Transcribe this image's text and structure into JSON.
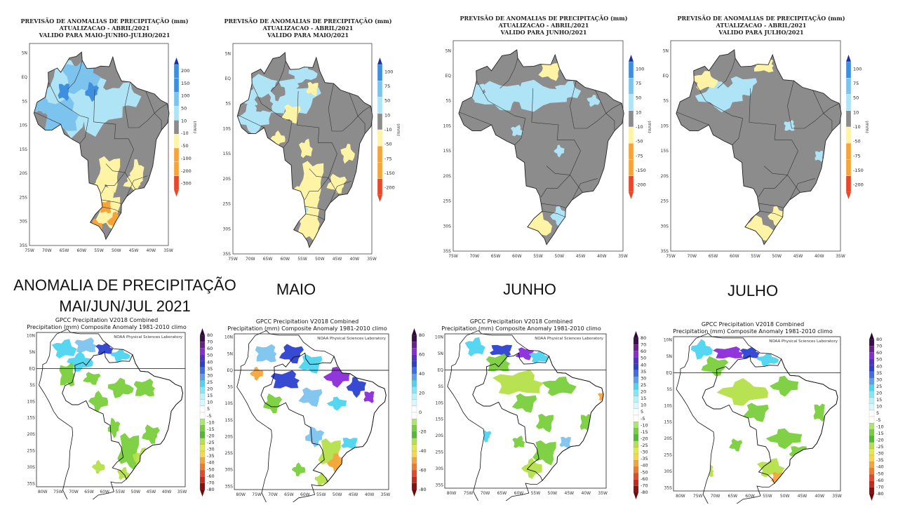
{
  "captions": {
    "main_line1": "ANOMALIA DE PRECIPITAÇÃO",
    "main_line2": "MAI/JUN/JUL 2021",
    "may": "MAIO",
    "june": "JUNHO",
    "july": "JULHO"
  },
  "forecast_maps": [
    {
      "title1": "PREVISÃO DE ANOMALIAS DE PRECIPITAÇÃO (mm)",
      "title2": "ATUALIZACAO - ABRIL/2021",
      "title3": "VALIDO PARA MAIO-JUNHO-JULHO/2021",
      "colorbar": [
        "200",
        "150",
        "100",
        "50",
        "10",
        "-10",
        "-50",
        "-100",
        "-200",
        "-300"
      ]
    },
    {
      "title1": "PREVISÃO DE ANOMALIAS DE PRECIPITAÇÃO (mm)",
      "title2": "ATUALIZACAO - ABRIL/2021",
      "title3": "VALIDO PARA MAIO/2021",
      "colorbar": [
        "100",
        "75",
        "50",
        "10",
        "-10",
        "-50",
        "-75",
        "-150",
        "-200"
      ]
    },
    {
      "title1": "PREVISÃO DE ANOMALIAS DE PRECIPITAÇÃO (mm)",
      "title2": "ATUALIZACAO - ABRIL/2021",
      "title3": "VALIDO PARA JUNHO/2021",
      "colorbar": [
        "100",
        "75",
        "50",
        "10",
        "-10",
        "-50",
        "-75",
        "-150",
        "-200"
      ]
    },
    {
      "title1": "PREVISÃO DE ANOMALIAS DE PRECIPITAÇÃO (mm)",
      "title2": "ATUALIZACAO - ABRIL/2021",
      "title3": "VALIDO PARA JULHO/2021",
      "colorbar": [
        "100",
        "75",
        "50",
        "10",
        "-10",
        "-50",
        "-75",
        "-150",
        "-200"
      ]
    }
  ],
  "forecast_axes": {
    "lat": [
      "5N",
      "EQ",
      "5S",
      "10S",
      "15S",
      "20S",
      "25S",
      "30S",
      "35S"
    ],
    "lon": [
      "75W",
      "70W",
      "65W",
      "60W",
      "55W",
      "50W",
      "45W",
      "40W",
      "35W"
    ],
    "unit": "(mm)"
  },
  "gpcc_maps": [
    {
      "title1": "GPCC Precipitation V2018 Combined",
      "title2": "Precipitation (mm) Composite Anomaly 1981-2010 climo",
      "credit": "NOAA Physical Sciences Laboratory"
    },
    {
      "title1": "GPCC Precipitation V2018 Combined",
      "title2": "Precipitation (mm) Composite Anomaly 1981-2010 climo",
      "credit": "NOAA Physical Sciences Laboratory"
    },
    {
      "title1": "GPCC Precipitation V2018 Combined",
      "title2": "Precipitation (mm) Composite Anomaly 1981-2010 climo",
      "credit": "NOAA Physical Sciences Laboratory"
    },
    {
      "title1": "GPCC Precipitation V2018 Combined",
      "title2": "Precipitation (mm) Composite Anomaly 1981-2010 climo",
      "credit": "NOAA Physical Sciences Laboratory"
    }
  ],
  "gpcc_axes": {
    "lat": [
      "10N",
      "5N",
      "EQ",
      "5S",
      "10S",
      "15S",
      "20S",
      "25S",
      "30S",
      "35S"
    ],
    "lon": [
      "80W",
      "75W",
      "70W",
      "65W",
      "60W",
      "55W",
      "50W",
      "45W",
      "40W",
      "35W"
    ]
  },
  "gpcc_colorbars": [
    [
      "80",
      "70",
      "60",
      "50",
      "40",
      "35",
      "30",
      "25",
      "20",
      "15",
      "10",
      "5",
      "-5",
      "-10",
      "-15",
      "-20",
      "-25",
      "-30",
      "-35",
      "-40",
      "-50",
      "-60",
      "-70",
      "-80"
    ],
    [
      "80",
      "60",
      "40",
      "20",
      "0",
      "-20",
      "-40",
      "-60",
      "-80"
    ],
    [
      "80",
      "70",
      "60",
      "50",
      "40",
      "35",
      "30",
      "25",
      "20",
      "15",
      "10",
      "5",
      "-5",
      "-10",
      "-15",
      "-20",
      "-25",
      "-30",
      "-35",
      "-40",
      "-50",
      "-60",
      "-70",
      "-80"
    ],
    [
      "80",
      "70",
      "60",
      "50",
      "40",
      "35",
      "30",
      "25",
      "20",
      "15",
      "10",
      "5",
      "-5",
      "-10",
      "-15",
      "-20",
      "-25",
      "-30",
      "-35",
      "-40",
      "-50",
      "-60",
      "-70",
      "-80"
    ]
  ],
  "colors": {
    "gray": "#8c8c8c",
    "light_blue": "#aee4f5",
    "mid_blue": "#7cc3ee",
    "blue": "#3f8fe0",
    "light_yellow": "#fff3a6",
    "orange": "#f6a43a",
    "red": "#e8482a",
    "green": "#79cf3b",
    "yellow_green": "#b5e04a",
    "cyan": "#4cd4f0",
    "purple": "#8a2bd8",
    "deep_blue": "#2c40d0"
  }
}
